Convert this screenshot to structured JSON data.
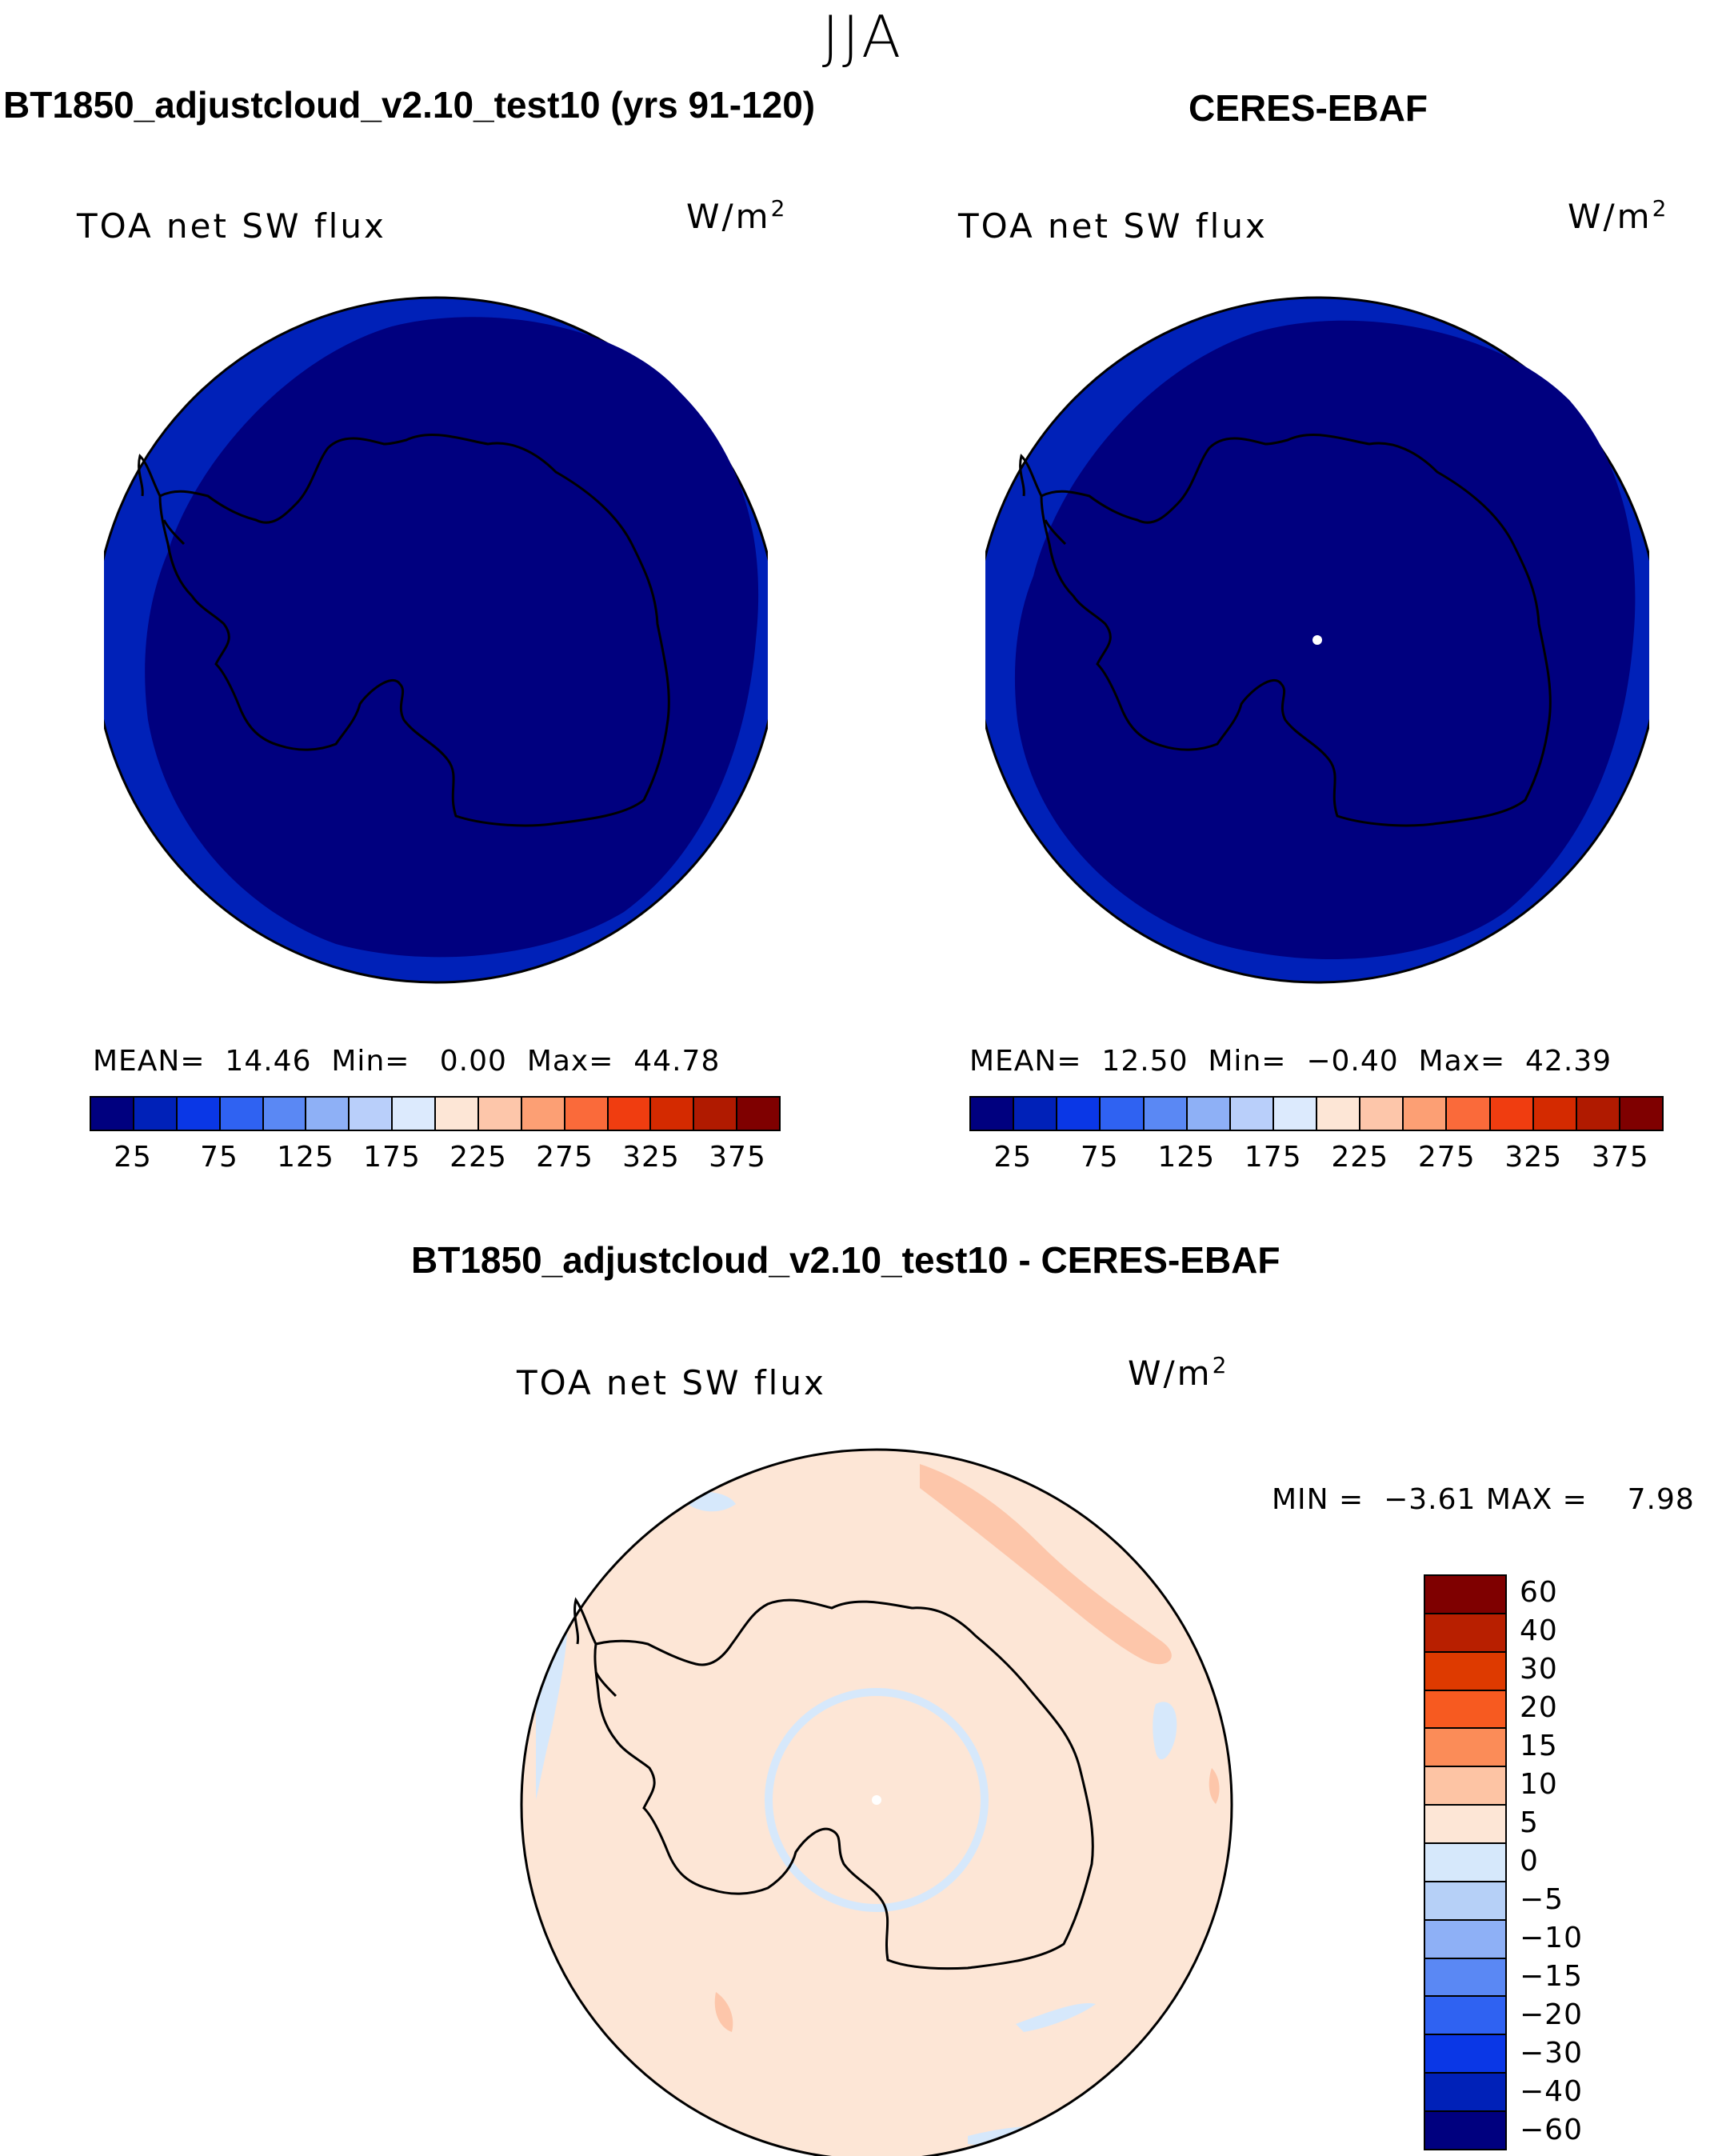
{
  "season": "JJA",
  "model_title": "BT1850_adjustcloud_v2.10_test10 (yrs 91-120)",
  "obs_title": "CERES-EBAF",
  "diff_title": "BT1850_adjustcloud_v2.10_test10 - CERES-EBAF",
  "variable": "TOA net SW flux",
  "units_base": "W/m",
  "units_exp": "2",
  "model_panel": {
    "mean_label": "MEAN=",
    "mean": "14.46",
    "min_label": "Min=",
    "min": "0.00",
    "max_label": "Max=",
    "max": "44.78"
  },
  "obs_panel": {
    "mean_label": "MEAN=",
    "mean": "12.50",
    "min_label": "Min=",
    "min": "−0.40",
    "max_label": "Max=",
    "max": "42.39"
  },
  "diff_panel": {
    "min_label": "MIN =",
    "min": "−3.61",
    "max_label": "MAX =",
    "max": "7.98"
  },
  "abs_colorbar": {
    "colors": [
      "#00007f",
      "#0021b8",
      "#0a37e6",
      "#2f62f2",
      "#5a88f4",
      "#8eb0f6",
      "#b9cffa",
      "#dceafd",
      "#fde6d6",
      "#fdc6aa",
      "#fc9f74",
      "#fa6a3a",
      "#f03d10",
      "#d42a00",
      "#b01a00",
      "#7f0000"
    ],
    "labels": [
      "25",
      "75",
      "125",
      "175",
      "225",
      "275",
      "325",
      "375"
    ]
  },
  "diff_colorbar": {
    "colors": [
      "#7f0000",
      "#b81f00",
      "#de3a00",
      "#f75a20",
      "#fb8c58",
      "#fdc4a4",
      "#fde6d6",
      "#d6e8fb",
      "#b6d0f7",
      "#8eb0f6",
      "#5a88f4",
      "#2f62f2",
      "#0a37e6",
      "#0021b8",
      "#00007f"
    ],
    "labels": [
      "60",
      "40",
      "30",
      "20",
      "15",
      "10",
      "5",
      "0",
      "−5",
      "−10",
      "−15",
      "−20",
      "−30",
      "−40",
      "−60"
    ]
  },
  "map_colors": {
    "model_outer": "#0021b8",
    "model_inner": "#00007f",
    "obs_outer": "#0021b8",
    "obs_inner": "#00007f",
    "diff_base": "#fde6d6",
    "diff_pos": "#fdc6aa",
    "diff_neg": "#d6e8fb"
  }
}
